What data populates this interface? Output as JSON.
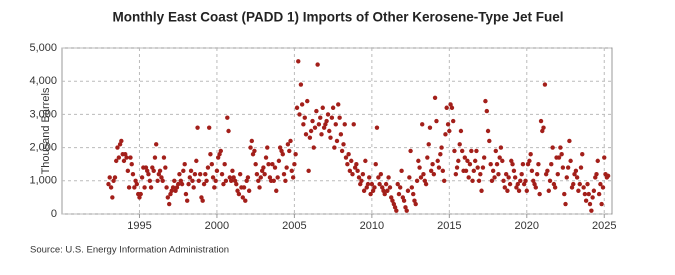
{
  "chart_data": {
    "type": "scatter",
    "title": "Monthly East Coast (PADD 1) Imports of Other Kerosene-Type Jet Fuel",
    "y_label": "Thousand Barrels",
    "source": "Source: U.S. Energy Information Administration",
    "color": "#a31f1a",
    "grid": true,
    "xlim": [
      1990,
      2025.5
    ],
    "xticks": [
      1995,
      2000,
      2005,
      2010,
      2015,
      2020,
      2025
    ],
    "ylim": [
      0,
      5000
    ],
    "yticks": [
      0,
      {
        "value": 1000,
        "label": "1,000"
      },
      {
        "value": 2000,
        "label": "2,000"
      },
      {
        "value": 3000,
        "label": "3,000"
      },
      {
        "value": 4000,
        "label": "4,000"
      },
      {
        "value": 5000,
        "label": "5,000"
      }
    ],
    "x": [
      1993,
      1993.08,
      1993.17,
      1993.25,
      1993.33,
      1993.42,
      1993.5,
      1993.58,
      1993.67,
      1993.75,
      1993.83,
      1993.92,
      1994,
      1994.08,
      1994.17,
      1994.25,
      1994.33,
      1994.42,
      1994.5,
      1994.58,
      1994.67,
      1994.75,
      1994.83,
      1994.92,
      1995,
      1995.08,
      1995.17,
      1995.25,
      1995.33,
      1995.42,
      1995.5,
      1995.58,
      1995.67,
      1995.75,
      1995.83,
      1995.92,
      1996,
      1996.08,
      1996.17,
      1996.25,
      1996.33,
      1996.42,
      1996.5,
      1996.58,
      1996.67,
      1996.75,
      1996.83,
      1996.92,
      1997,
      1997.08,
      1997.17,
      1997.25,
      1997.33,
      1997.42,
      1997.5,
      1997.58,
      1997.67,
      1997.75,
      1997.83,
      1997.92,
      1998,
      1998.08,
      1998.17,
      1998.25,
      1998.33,
      1998.42,
      1998.5,
      1998.58,
      1998.67,
      1998.75,
      1998.83,
      1998.92,
      1999,
      1999.08,
      1999.17,
      1999.25,
      1999.33,
      1999.42,
      1999.5,
      1999.58,
      1999.67,
      1999.75,
      1999.83,
      1999.92,
      2000,
      2000.08,
      2000.17,
      2000.25,
      2000.33,
      2000.42,
      2000.5,
      2000.58,
      2000.67,
      2000.75,
      2000.83,
      2000.92,
      2001,
      2001.08,
      2001.17,
      2001.25,
      2001.33,
      2001.42,
      2001.5,
      2001.58,
      2001.67,
      2001.75,
      2001.83,
      2001.92,
      2002,
      2002.08,
      2002.17,
      2002.25,
      2002.33,
      2002.42,
      2002.5,
      2002.58,
      2002.67,
      2002.75,
      2002.83,
      2002.92,
      2003,
      2003.08,
      2003.17,
      2003.25,
      2003.33,
      2003.42,
      2003.5,
      2003.58,
      2003.67,
      2003.75,
      2003.83,
      2003.92,
      2004,
      2004.08,
      2004.17,
      2004.25,
      2004.33,
      2004.42,
      2004.5,
      2004.58,
      2004.67,
      2004.75,
      2004.83,
      2004.92,
      2005,
      2005.08,
      2005.17,
      2005.25,
      2005.33,
      2005.42,
      2005.5,
      2005.58,
      2005.67,
      2005.75,
      2005.83,
      2005.92,
      2006,
      2006.08,
      2006.17,
      2006.25,
      2006.33,
      2006.42,
      2006.5,
      2006.58,
      2006.67,
      2006.75,
      2006.83,
      2006.92,
      2007,
      2007.08,
      2007.17,
      2007.25,
      2007.33,
      2007.42,
      2007.5,
      2007.58,
      2007.67,
      2007.75,
      2007.83,
      2007.92,
      2008,
      2008.08,
      2008.17,
      2008.25,
      2008.33,
      2008.42,
      2008.5,
      2008.58,
      2008.67,
      2008.75,
      2008.83,
      2008.92,
      2009,
      2009.08,
      2009.17,
      2009.25,
      2009.33,
      2009.42,
      2009.5,
      2009.58,
      2009.67,
      2009.75,
      2009.83,
      2009.92,
      2010,
      2010.08,
      2010.17,
      2010.25,
      2010.33,
      2010.42,
      2010.5,
      2010.58,
      2010.67,
      2010.75,
      2010.83,
      2010.92,
      2011,
      2011.08,
      2011.17,
      2011.25,
      2011.33,
      2011.42,
      2011.5,
      2011.58,
      2011.67,
      2011.75,
      2011.83,
      2011.92,
      2012,
      2012.08,
      2012.17,
      2012.25,
      2012.33,
      2012.42,
      2012.5,
      2012.58,
      2012.67,
      2012.75,
      2012.83,
      2012.92,
      2013,
      2013.08,
      2013.17,
      2013.25,
      2013.33,
      2013.42,
      2013.5,
      2013.58,
      2013.67,
      2013.75,
      2013.83,
      2013.92,
      2014,
      2014.08,
      2014.17,
      2014.25,
      2014.33,
      2014.42,
      2014.5,
      2014.58,
      2014.67,
      2014.75,
      2014.83,
      2014.92,
      2015,
      2015.08,
      2015.17,
      2015.25,
      2015.33,
      2015.42,
      2015.5,
      2015.58,
      2015.67,
      2015.75,
      2015.83,
      2015.92,
      2016,
      2016.08,
      2016.17,
      2016.25,
      2016.33,
      2016.42,
      2016.5,
      2016.58,
      2016.67,
      2016.75,
      2016.83,
      2016.92,
      2017,
      2017.08,
      2017.17,
      2017.25,
      2017.33,
      2017.42,
      2017.5,
      2017.58,
      2017.67,
      2017.75,
      2017.83,
      2017.92,
      2018,
      2018.08,
      2018.17,
      2018.25,
      2018.33,
      2018.42,
      2018.5,
      2018.58,
      2018.67,
      2018.75,
      2018.83,
      2018.92,
      2019,
      2019.08,
      2019.17,
      2019.25,
      2019.33,
      2019.42,
      2019.5,
      2019.58,
      2019.67,
      2019.75,
      2019.83,
      2019.92,
      2020,
      2020.08,
      2020.17,
      2020.25,
      2020.33,
      2020.42,
      2020.5,
      2020.58,
      2020.67,
      2020.75,
      2020.83,
      2020.92,
      2021,
      2021.08,
      2021.17,
      2021.25,
      2021.33,
      2021.42,
      2021.5,
      2021.58,
      2021.67,
      2021.75,
      2021.83,
      2021.92,
      2022,
      2022.08,
      2022.17,
      2022.25,
      2022.33,
      2022.42,
      2022.5,
      2022.58,
      2022.67,
      2022.75,
      2022.83,
      2022.92,
      2023,
      2023.08,
      2023.17,
      2023.25,
      2023.33,
      2023.42,
      2023.5,
      2023.58,
      2023.67,
      2023.75,
      2023.83,
      2023.92,
      2024,
      2024.08,
      2024.17,
      2024.25,
      2024.33,
      2024.42,
      2024.5,
      2024.58,
      2024.67,
      2024.75,
      2024.83,
      2024.92,
      2025,
      2025.08,
      2025.17,
      2025.25
    ],
    "values": [
      900,
      1100,
      800,
      500,
      1000,
      1100,
      1600,
      2000,
      1700,
      2100,
      2200,
      1800,
      1600,
      1800,
      1700,
      1300,
      800,
      1700,
      1500,
      1200,
      800,
      1000,
      900,
      600,
      500,
      600,
      1100,
      1400,
      800,
      1400,
      1300,
      1200,
      1000,
      800,
      1400,
      1300,
      1700,
      2100,
      1000,
      1200,
      1300,
      1100,
      1000,
      1700,
      1400,
      800,
      500,
      300,
      600,
      700,
      800,
      1000,
      700,
      800,
      900,
      1200,
      1000,
      900,
      1300,
      1500,
      600,
      400,
      900,
      1100,
      1300,
      1000,
      800,
      1200,
      1600,
      2600,
      1000,
      1200,
      500,
      400,
      900,
      1200,
      1000,
      1400,
      2600,
      1800,
      1500,
      1100,
      800,
      1000,
      1300,
      1700,
      1800,
      1900,
      1200,
      900,
      1500,
      1000,
      2900,
      2500,
      1100,
      1000,
      1300,
      1100,
      1000,
      900,
      700,
      600,
      1200,
      800,
      500,
      800,
      400,
      1000,
      1100,
      700,
      2000,
      2200,
      1800,
      1900,
      1500,
      1200,
      1000,
      800,
      1100,
      1300,
      1400,
      1200,
      1700,
      2000,
      1500,
      1100,
      1000,
      1500,
      1000,
      1400,
      700,
      1100,
      1600,
      2000,
      1900,
      1800,
      1200,
      1000,
      1400,
      2100,
      1900,
      2200,
      1300,
      1100,
      1500,
      1800,
      3200,
      4600,
      3000,
      3900,
      3300,
      2700,
      2900,
      2400,
      3400,
      1300,
      2300,
      2500,
      2800,
      2000,
      2600,
      3100,
      4500,
      2700,
      2900,
      2400,
      3200,
      2600,
      2700,
      2800,
      3000,
      2500,
      2300,
      2900,
      3200,
      2000,
      2700,
      2200,
      3300,
      2900,
      2400,
      1900,
      2100,
      2700,
      1700,
      1500,
      1800,
      1300,
      1600,
      1200,
      2700,
      1400,
      1500,
      1300,
      1100,
      900,
      1000,
      1200,
      700,
      1600,
      800,
      900,
      1100,
      600,
      900,
      700,
      800,
      1500,
      2600,
      1100,
      900,
      1200,
      800,
      700,
      600,
      900,
      700,
      1100,
      800,
      500,
      400,
      300,
      200,
      100,
      900,
      600,
      800,
      1300,
      500,
      400,
      200,
      100,
      700,
      1100,
      1900,
      800,
      600,
      400,
      300,
      1000,
      1600,
      1400,
      1100,
      2700,
      1200,
      1000,
      900,
      1700,
      2100,
      2600,
      1300,
      1500,
      1200,
      3500,
      2800,
      1600,
      1400,
      1800,
      2000,
      1300,
      1000,
      2400,
      3200,
      2700,
      2500,
      3300,
      3200,
      2800,
      1900,
      1200,
      1400,
      1600,
      2100,
      2500,
      1900,
      1300,
      1700,
      1300,
      1600,
      1100,
      1500,
      1900,
      1000,
      1300,
      1600,
      1900,
      1400,
      1000,
      1200,
      700,
      1400,
      1700,
      3400,
      3100,
      2500,
      2200,
      1500,
      1000,
      1300,
      1100,
      1900,
      1500,
      1200,
      1700,
      2000,
      1600,
      1000,
      800,
      1200,
      700,
      1100,
      900,
      1600,
      1500,
      1300,
      1100,
      800,
      900,
      700,
      1000,
      1200,
      1500,
      900,
      1000,
      700,
      1500,
      1600,
      1800,
      1300,
      1000,
      900,
      800,
      1200,
      1500,
      600,
      2800,
      2500,
      2600,
      3900,
      1200,
      1300,
      700,
      1000,
      1500,
      2000,
      900,
      800,
      1700,
      1200,
      1700,
      2000,
      1800,
      1400,
      600,
      300,
      1100,
      1400,
      2200,
      1600,
      800,
      900,
      1200,
      1300,
      1100,
      700,
      900,
      1400,
      1800,
      800,
      600,
      400,
      900,
      600,
      300,
      100,
      500,
      700,
      1100,
      1200,
      1600,
      600,
      900,
      300,
      800,
      1700,
      1200,
      1100,
      1150
    ]
  }
}
